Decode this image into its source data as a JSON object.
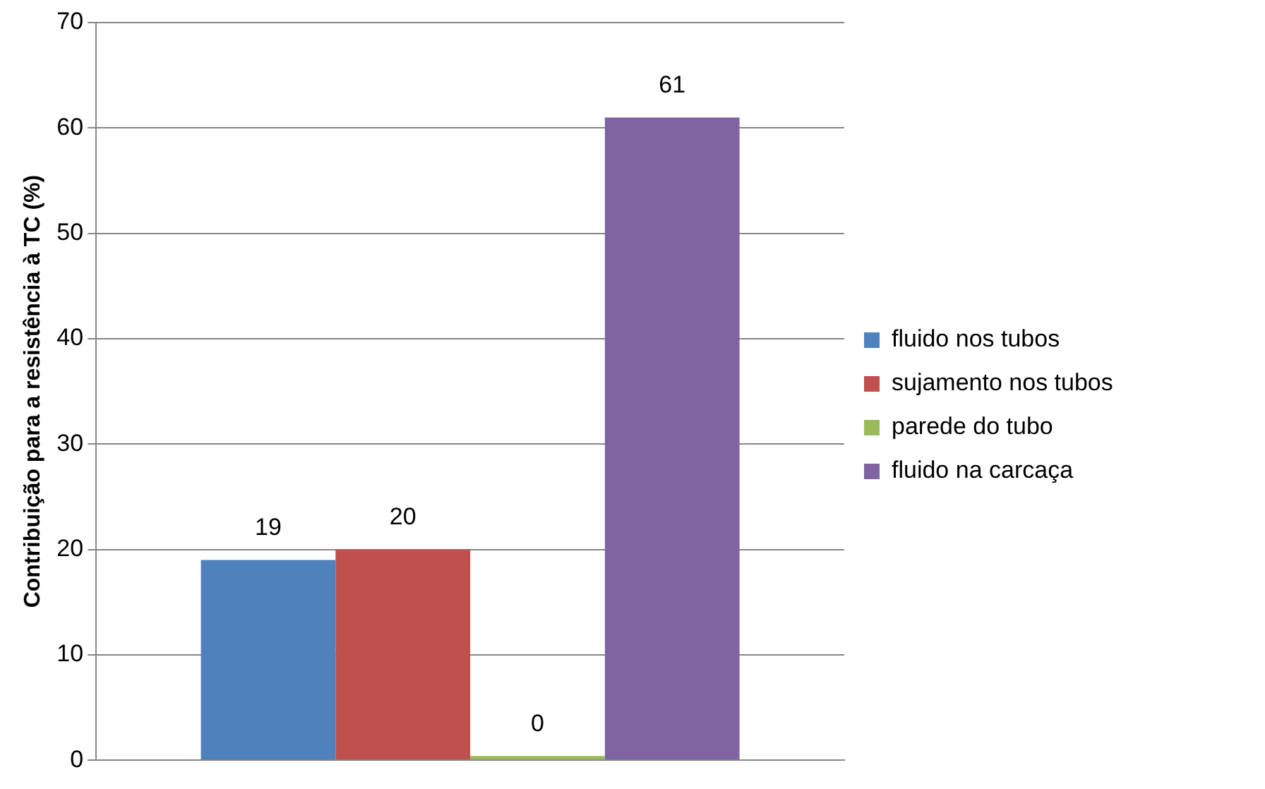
{
  "chart_data": {
    "type": "bar",
    "ylabel": "Contribuição para a resistência à TC (%)",
    "categories": [
      null
    ],
    "series": [
      {
        "name": "fluido nos tubos",
        "color": "#4f81bd",
        "values": [
          19
        ],
        "value_labels": [
          "19"
        ]
      },
      {
        "name": "sujamento nos tubos",
        "color": "#c0504d",
        "values": [
          20
        ],
        "value_labels": [
          "20"
        ]
      },
      {
        "name": "parede do tubo",
        "color": "#9bbb59",
        "values": [
          0.4
        ],
        "value_labels": [
          "0"
        ]
      },
      {
        "name": "fluido na carcaça",
        "color": "#8064a2",
        "values": [
          61
        ],
        "value_labels": [
          "61"
        ]
      }
    ],
    "ylim": [
      0,
      70
    ],
    "yticks": [
      0,
      10,
      20,
      30,
      40,
      50,
      60,
      70
    ],
    "grid": "y",
    "legend": "right"
  }
}
